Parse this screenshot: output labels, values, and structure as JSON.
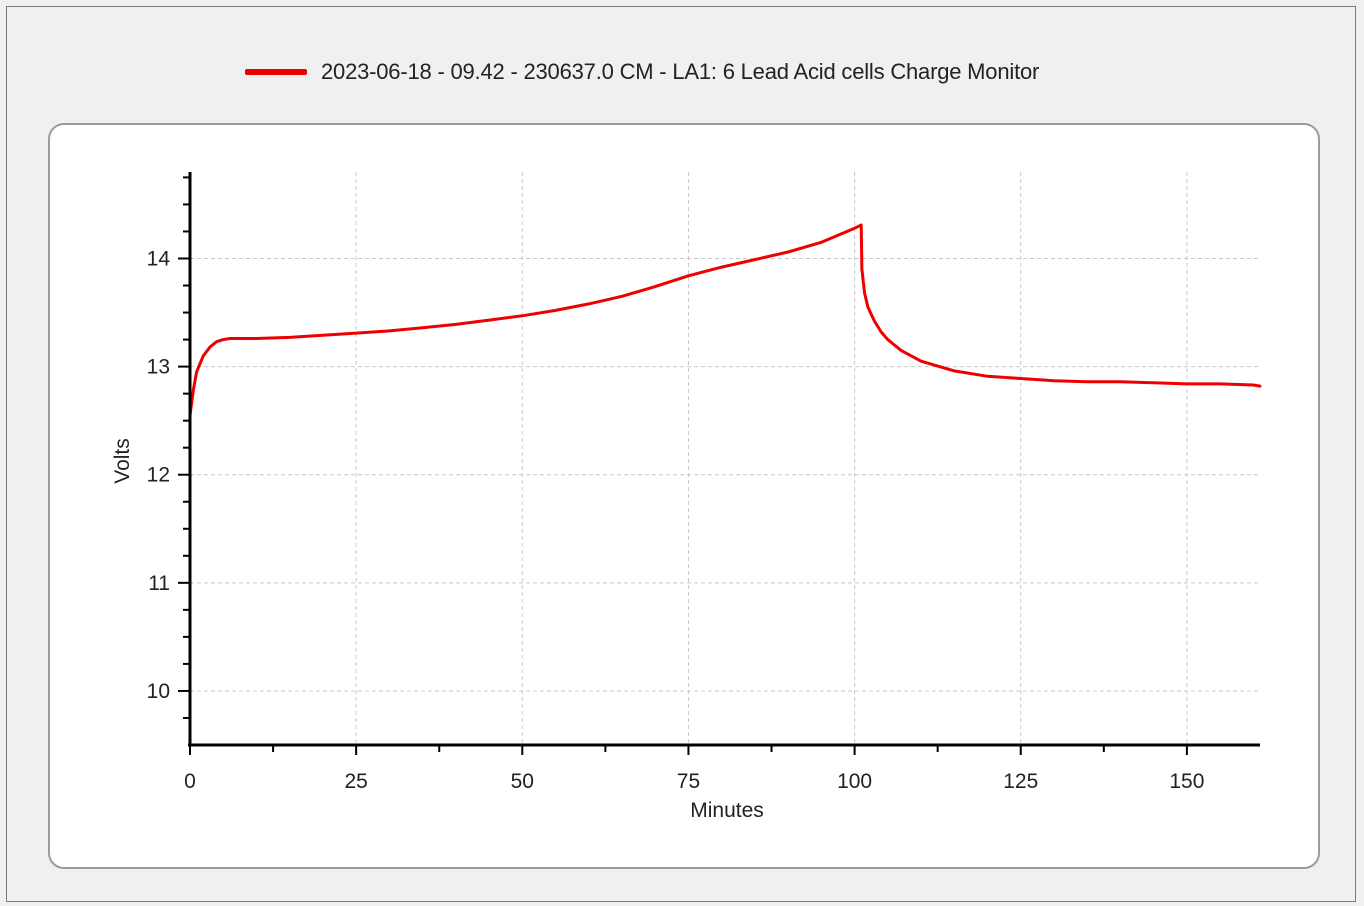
{
  "chart_data": {
    "type": "line",
    "title": "",
    "xlabel": "Minutes",
    "ylabel": "Volts",
    "xlim": [
      0,
      161
    ],
    "ylim": [
      9.5,
      14.8
    ],
    "x_ticks": [
      0,
      25,
      50,
      75,
      100,
      125,
      150
    ],
    "y_ticks": [
      10,
      11,
      12,
      13,
      14
    ],
    "x_minor_step": 12.5,
    "y_minor_step": 0.25,
    "grid": true,
    "legend_position": "top-center",
    "series": [
      {
        "name": "2023-06-18 - 09.42 - 230637.0 CM - LA1: 6 Lead Acid cells Charge Monitor",
        "color": "#ee0000",
        "x": [
          0,
          0.5,
          1,
          2,
          3,
          4,
          5,
          6,
          8,
          10,
          15,
          20,
          25,
          30,
          35,
          40,
          45,
          50,
          55,
          60,
          65,
          70,
          75,
          80,
          85,
          90,
          95,
          100,
          101,
          101.1,
          101.5,
          102,
          103,
          104,
          105,
          107,
          110,
          115,
          120,
          125,
          130,
          135,
          140,
          145,
          150,
          155,
          160,
          161
        ],
        "y": [
          12.55,
          12.78,
          12.95,
          13.1,
          13.18,
          13.23,
          13.25,
          13.26,
          13.26,
          13.26,
          13.27,
          13.29,
          13.31,
          13.33,
          13.36,
          13.39,
          13.43,
          13.47,
          13.52,
          13.58,
          13.65,
          13.74,
          13.84,
          13.92,
          13.99,
          14.06,
          14.15,
          14.28,
          14.31,
          13.9,
          13.68,
          13.55,
          13.42,
          13.32,
          13.25,
          13.15,
          13.05,
          12.96,
          12.91,
          12.89,
          12.87,
          12.86,
          12.86,
          12.85,
          12.84,
          12.84,
          12.83,
          12.82
        ]
      }
    ]
  }
}
